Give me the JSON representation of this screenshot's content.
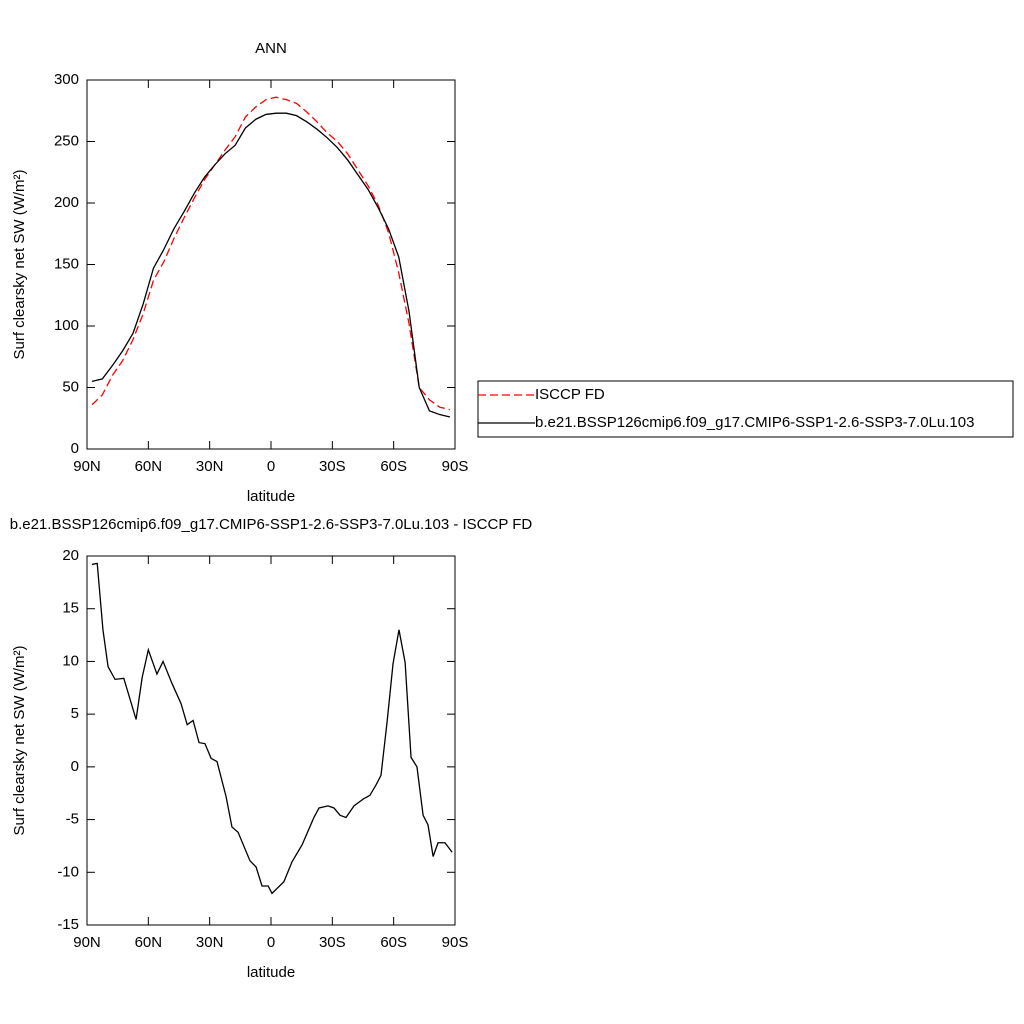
{
  "chart_data": [
    {
      "type": "line",
      "title": "ANN",
      "xlabel": "latitude",
      "ylabel": "Surf clearsky net SW (W/m²)",
      "x": [
        87.5,
        82.5,
        77.5,
        72.5,
        67.5,
        62.5,
        57.5,
        52.5,
        47.5,
        42.5,
        37.5,
        32.5,
        27.5,
        22.5,
        17.5,
        12.5,
        7.5,
        2.5,
        -2.5,
        -7.5,
        -12.5,
        -17.5,
        -22.5,
        -27.5,
        -32.5,
        -37.5,
        -42.5,
        -47.5,
        -52.5,
        -57.5,
        -62.5,
        -67.5,
        -72.5,
        -77.5,
        -82.5,
        -87.5
      ],
      "series": [
        {
          "name": "ISCCP FD",
          "color": "#ff0000",
          "linestyle": "dashed",
          "values": [
            36,
            44,
            60,
            72,
            89,
            110,
            137,
            152,
            171,
            188,
            204,
            219,
            231,
            243,
            254,
            270,
            278,
            284,
            286,
            284,
            281,
            274,
            266,
            257,
            250,
            240,
            227,
            214,
            198,
            176,
            143,
            102,
            50,
            40,
            34,
            32
          ]
        },
        {
          "name": "b.e21.BSSP126cmip6.f09_g17.CMIP6-SSP1-2.6-SSP3-7.0Lu.103",
          "color": "#000000",
          "linestyle": "solid",
          "values": [
            55,
            57,
            68,
            80,
            94,
            118,
            147,
            162,
            179,
            193,
            208,
            221,
            231,
            240,
            247,
            261,
            268,
            272,
            273,
            273,
            271,
            266,
            260,
            253,
            245,
            235,
            223,
            211,
            196,
            179,
            156,
            112,
            50,
            31,
            28,
            26
          ]
        }
      ],
      "xlim": [
        90,
        -90
      ],
      "xticks": [
        {
          "value": 90,
          "label": "90N"
        },
        {
          "value": 60,
          "label": "60N"
        },
        {
          "value": 30,
          "label": "30N"
        },
        0,
        {
          "value": -30,
          "label": "30S"
        },
        {
          "value": -60,
          "label": "60S"
        },
        {
          "value": -90,
          "label": "90S"
        }
      ],
      "ylim": [
        0,
        300
      ],
      "yticks": [
        0,
        50,
        100,
        150,
        200,
        250,
        300
      ],
      "legend": "right"
    },
    {
      "type": "line",
      "title": "b.e21.BSSP126cmip6.f09_g17.CMIP6-SSP1-2.6-SSP3-7.0Lu.103 - ISCCP FD",
      "xlabel": "latitude",
      "ylabel": "Surf clearsky net SW (W/m²)",
      "x": [
        87.6,
        85,
        82.2,
        79.7,
        76.3,
        72,
        66,
        63,
        60,
        55.8,
        52.8,
        48.4,
        44,
        41,
        38.1,
        35.2,
        32.3,
        29.3,
        26.4,
        22,
        19.1,
        16.1,
        10.3,
        7.3,
        4.4,
        1.4,
        -0.5,
        -6.3,
        -10.3,
        -15.2,
        -21,
        -23.5,
        -27.9,
        -30.8,
        -33.8,
        -36.7,
        -40.6,
        -45.5,
        -48.4,
        -51.4,
        -53.8,
        -56.8,
        -59.7,
        -62.6,
        -65.6,
        -68.5,
        -71.4,
        -74.4,
        -76.8,
        -79.3,
        -81.7,
        -85.1,
        -88.6
      ],
      "values": [
        19.2,
        19.3,
        13,
        9.5,
        8.3,
        8.4,
        4.5,
        8.5,
        11.1,
        8.8,
        10,
        7.9,
        6,
        4,
        4.4,
        2.3,
        2.2,
        0.8,
        0.5,
        -2.8,
        -5.7,
        -6.2,
        -8.9,
        -9.5,
        -11.3,
        -11.3,
        -12,
        -10.9,
        -9,
        -7.4,
        -4.8,
        -3.9,
        -3.7,
        -3.9,
        -4.6,
        -4.8,
        -3.7,
        -3,
        -2.7,
        -1.7,
        -0.8,
        4.3,
        9.8,
        13,
        9.9,
        0.9,
        0,
        -4.6,
        -5.5,
        -8.5,
        -7.2,
        -7.2,
        -8.1
      ],
      "color": "#000000",
      "xlim": [
        90,
        -90
      ],
      "xticks": [
        {
          "value": 90,
          "label": "90N"
        },
        {
          "value": 60,
          "label": "60N"
        },
        {
          "value": 30,
          "label": "30N"
        },
        0,
        {
          "value": -30,
          "label": "30S"
        },
        {
          "value": -60,
          "label": "60S"
        },
        {
          "value": -90,
          "label": "90S"
        }
      ],
      "ylim": [
        -15,
        20
      ],
      "yticks": [
        -15,
        -10,
        -5,
        0,
        5,
        10,
        15,
        20
      ]
    }
  ]
}
